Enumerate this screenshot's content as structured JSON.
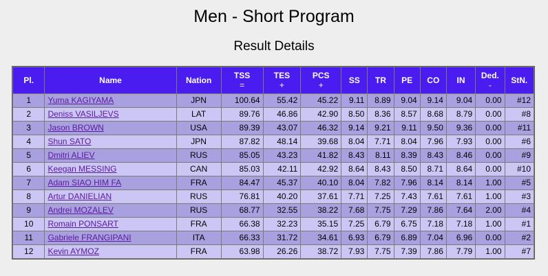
{
  "page": {
    "title": "Men - Short Program",
    "subtitle": "Result Details"
  },
  "table": {
    "headers": {
      "pl": "Pl.",
      "name": "Name",
      "nation": "Nation",
      "tss": "TSS",
      "tss_sort": "=",
      "tes": "TES",
      "tes_sort": "+",
      "pcs": "PCS",
      "pcs_sort": "+",
      "ss": "SS",
      "tr": "TR",
      "pe": "PE",
      "co": "CO",
      "in": "IN",
      "ded": "Ded.",
      "ded_sort": "-",
      "stn": "StN."
    },
    "rows": [
      {
        "pl": "1",
        "name": "Yuma KAGIYAMA",
        "nation": "JPN",
        "tss": "100.64",
        "tes": "55.42",
        "pcs": "45.22",
        "ss": "9.11",
        "tr": "8.89",
        "pe": "9.04",
        "co": "9.14",
        "in": "9.04",
        "ded": "0.00",
        "stn": "#12"
      },
      {
        "pl": "2",
        "name": "Deniss VASILJEVS",
        "nation": "LAT",
        "tss": "89.76",
        "tes": "46.86",
        "pcs": "42.90",
        "ss": "8.50",
        "tr": "8.36",
        "pe": "8.57",
        "co": "8.68",
        "in": "8.79",
        "ded": "0.00",
        "stn": "#8"
      },
      {
        "pl": "3",
        "name": "Jason BROWN",
        "nation": "USA",
        "tss": "89.39",
        "tes": "43.07",
        "pcs": "46.32",
        "ss": "9.14",
        "tr": "9.21",
        "pe": "9.11",
        "co": "9.50",
        "in": "9.36",
        "ded": "0.00",
        "stn": "#11"
      },
      {
        "pl": "4",
        "name": "Shun SATO",
        "nation": "JPN",
        "tss": "87.82",
        "tes": "48.14",
        "pcs": "39.68",
        "ss": "8.04",
        "tr": "7.71",
        "pe": "8.04",
        "co": "7.96",
        "in": "7.93",
        "ded": "0.00",
        "stn": "#6"
      },
      {
        "pl": "5",
        "name": "Dmitri ALIEV",
        "nation": "RUS",
        "tss": "85.05",
        "tes": "43.23",
        "pcs": "41.82",
        "ss": "8.43",
        "tr": "8.11",
        "pe": "8.39",
        "co": "8.43",
        "in": "8.46",
        "ded": "0.00",
        "stn": "#9"
      },
      {
        "pl": "6",
        "name": "Keegan MESSING",
        "nation": "CAN",
        "tss": "85.03",
        "tes": "42.11",
        "pcs": "42.92",
        "ss": "8.64",
        "tr": "8.43",
        "pe": "8.50",
        "co": "8.71",
        "in": "8.64",
        "ded": "0.00",
        "stn": "#10"
      },
      {
        "pl": "7",
        "name": "Adam SIAO HIM FA",
        "nation": "FRA",
        "tss": "84.47",
        "tes": "45.37",
        "pcs": "40.10",
        "ss": "8.04",
        "tr": "7.82",
        "pe": "7.96",
        "co": "8.14",
        "in": "8.14",
        "ded": "1.00",
        "stn": "#5"
      },
      {
        "pl": "8",
        "name": "Artur DANIELIAN",
        "nation": "RUS",
        "tss": "76.81",
        "tes": "40.20",
        "pcs": "37.61",
        "ss": "7.71",
        "tr": "7.25",
        "pe": "7.43",
        "co": "7.61",
        "in": "7.61",
        "ded": "1.00",
        "stn": "#3"
      },
      {
        "pl": "9",
        "name": "Andrei MOZALEV",
        "nation": "RUS",
        "tss": "68.77",
        "tes": "32.55",
        "pcs": "38.22",
        "ss": "7.68",
        "tr": "7.75",
        "pe": "7.29",
        "co": "7.86",
        "in": "7.64",
        "ded": "2.00",
        "stn": "#4"
      },
      {
        "pl": "10",
        "name": "Romain PONSART",
        "nation": "FRA",
        "tss": "66.38",
        "tes": "32.23",
        "pcs": "35.15",
        "ss": "7.25",
        "tr": "6.79",
        "pe": "6.75",
        "co": "7.18",
        "in": "7.18",
        "ded": "1.00",
        "stn": "#1"
      },
      {
        "pl": "11",
        "name": "Gabriele FRANGIPANI",
        "nation": "ITA",
        "tss": "66.33",
        "tes": "31.72",
        "pcs": "34.61",
        "ss": "6.93",
        "tr": "6.79",
        "pe": "6.89",
        "co": "7.04",
        "in": "6.96",
        "ded": "0.00",
        "stn": "#2"
      },
      {
        "pl": "12",
        "name": "Kevin AYMOZ",
        "nation": "FRA",
        "tss": "63.98",
        "tes": "26.26",
        "pcs": "38.72",
        "ss": "7.93",
        "tr": "7.75",
        "pe": "7.39",
        "co": "7.86",
        "in": "7.79",
        "ded": "1.00",
        "stn": "#7"
      }
    ]
  },
  "colors": {
    "header_bg": "#4b1cf0",
    "row_odd": "#a9a1df",
    "row_even": "#ccc6f5",
    "link": "#5a1a9e"
  }
}
